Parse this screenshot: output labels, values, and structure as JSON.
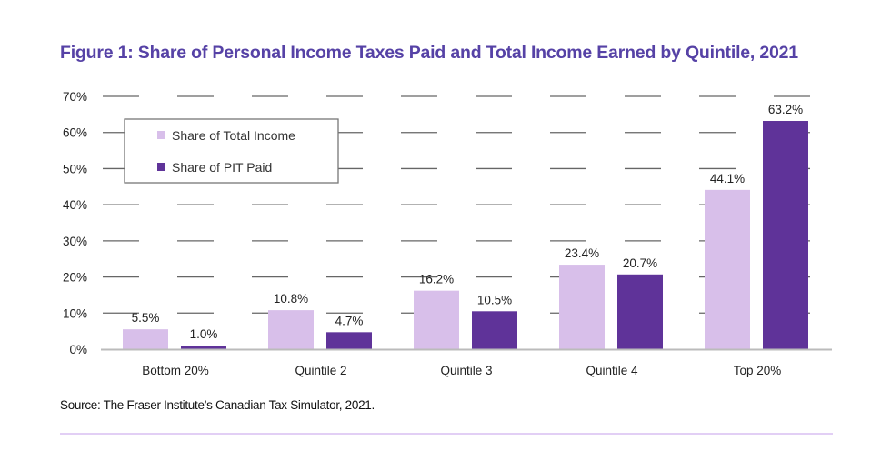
{
  "chart_data": {
    "type": "bar",
    "title": "Figure 1: Share of Personal Income Taxes Paid and Total Income Earned by Quintile, 2021",
    "categories": [
      "Bottom 20%",
      "Quintile 2",
      "Quintile 3",
      "Quintile 4",
      "Top 20%"
    ],
    "series": [
      {
        "name": "Share of Total Income",
        "color": "#d8bfea",
        "values": [
          5.5,
          10.8,
          16.2,
          23.4,
          44.1
        ],
        "labels": [
          "5.5%",
          "10.8%",
          "16.2%",
          "23.4%",
          "44.1%"
        ]
      },
      {
        "name": "Share of PIT Paid",
        "color": "#5f3399",
        "values": [
          1.0,
          4.7,
          10.5,
          20.7,
          63.2
        ],
        "labels": [
          "1.0%",
          "4.7%",
          "10.5%",
          "20.7%",
          "63.2%"
        ]
      }
    ],
    "yticks": [
      "0%",
      "10%",
      "20%",
      "30%",
      "40%",
      "50%",
      "60%",
      "70%"
    ],
    "ylim": [
      0,
      70
    ],
    "xlabel": "",
    "ylabel": "",
    "grid": true,
    "legend": "top-left",
    "source": "Source: The Fraser Institute’s Canadian Tax Simulator, 2021."
  }
}
